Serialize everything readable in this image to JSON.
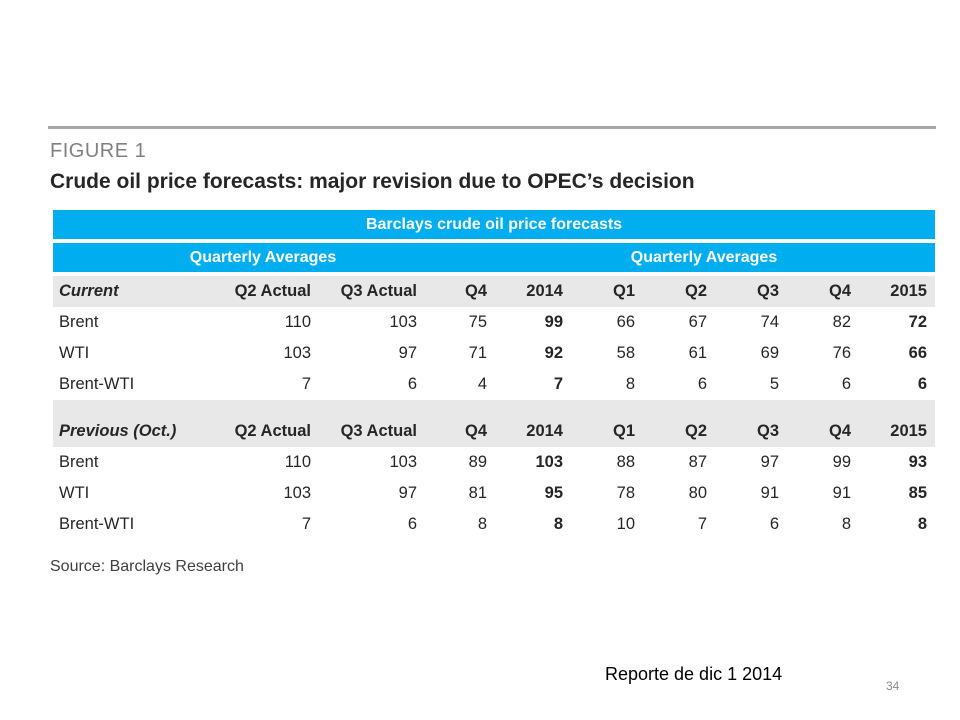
{
  "figure": {
    "label": "FIGURE 1",
    "title": "Crude oil price forecasts: major revision due to OPEC’s decision"
  },
  "table": {
    "main_header": "Barclays crude oil price forecasts",
    "group_headers": [
      "Quarterly Averages",
      "Quarterly Averages"
    ],
    "current": {
      "label": "Current",
      "columns": [
        "Q2 Actual",
        "Q3 Actual",
        "Q4",
        "2014",
        "Q1",
        "Q2",
        "Q3",
        "Q4",
        "2015"
      ],
      "rows": [
        {
          "name": "Brent",
          "values": [
            "110",
            "103",
            "75",
            "99",
            "66",
            "67",
            "74",
            "82",
            "72"
          ]
        },
        {
          "name": "WTI",
          "values": [
            "103",
            "97",
            "71",
            "92",
            "58",
            "61",
            "69",
            "76",
            "66"
          ]
        },
        {
          "name": "Brent-WTI",
          "values": [
            "7",
            "6",
            "4",
            "7",
            "8",
            "6",
            "5",
            "6",
            "6"
          ]
        }
      ]
    },
    "previous": {
      "label": "Previous (Oct.)",
      "columns": [
        "Q2 Actual",
        "Q3 Actual",
        "Q4",
        "2014",
        "Q1",
        "Q2",
        "Q3",
        "Q4",
        "2015"
      ],
      "rows": [
        {
          "name": "Brent",
          "values": [
            "110",
            "103",
            "89",
            "103",
            "88",
            "87",
            "97",
            "99",
            "93"
          ]
        },
        {
          "name": "WTI",
          "values": [
            "103",
            "97",
            "81",
            "95",
            "78",
            "80",
            "91",
            "91",
            "85"
          ]
        },
        {
          "name": "Brent-WTI",
          "values": [
            "7",
            "6",
            "8",
            "8",
            "10",
            "7",
            "6",
            "8",
            "8"
          ]
        }
      ]
    }
  },
  "source": "Source:  Barclays Research",
  "footer": {
    "note": "Reporte de dic 1 2014",
    "page_number": "34"
  },
  "colors": {
    "header_blue": "#00aeef",
    "section_grey": "#e8e8e8",
    "rule_grey": "#a6a6a6"
  }
}
